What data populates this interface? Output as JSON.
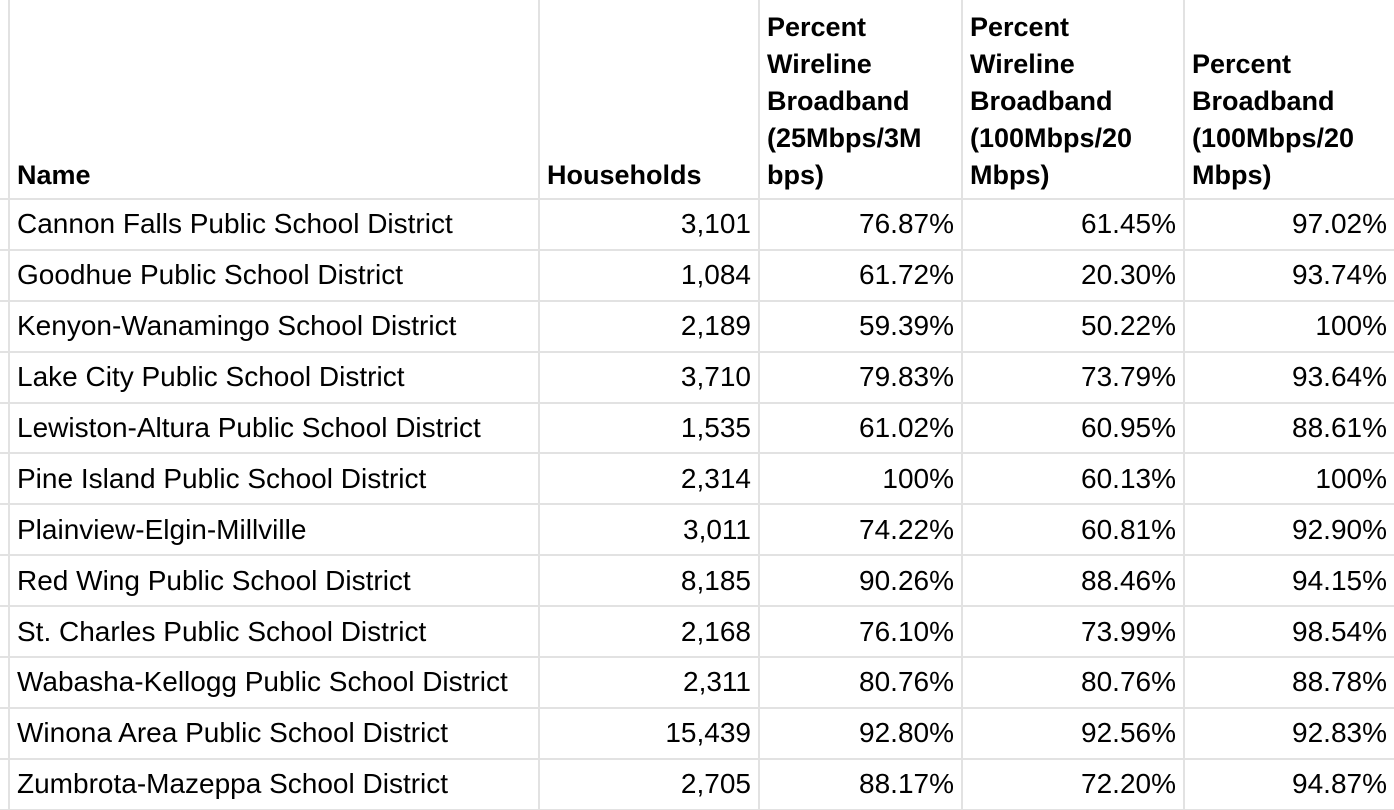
{
  "table": {
    "columns": [
      {
        "label": "Name"
      },
      {
        "label": "Households"
      },
      {
        "label": "Percent\nWireline\nBroadband\n(25Mbps/3M\nbps)"
      },
      {
        "label": "Percent\nWireline\nBroadband\n(100Mbps/20\nMbps)"
      },
      {
        "label": "Percent\nBroadband\n(100Mbps/20\nMbps)"
      }
    ],
    "rows": [
      {
        "name": "Cannon Falls Public School District",
        "households": "3,101",
        "pct_wireline_25_3": "76.87%",
        "pct_wireline_100_20": "61.45%",
        "pct_broadband_100_20": "97.02%"
      },
      {
        "name": "Goodhue Public School District",
        "households": "1,084",
        "pct_wireline_25_3": "61.72%",
        "pct_wireline_100_20": "20.30%",
        "pct_broadband_100_20": "93.74%"
      },
      {
        "name": "Kenyon-Wanamingo School District",
        "households": "2,189",
        "pct_wireline_25_3": "59.39%",
        "pct_wireline_100_20": "50.22%",
        "pct_broadband_100_20": "100%"
      },
      {
        "name": "Lake City Public School District",
        "households": "3,710",
        "pct_wireline_25_3": "79.83%",
        "pct_wireline_100_20": "73.79%",
        "pct_broadband_100_20": "93.64%"
      },
      {
        "name": "Lewiston-Altura Public School District",
        "households": "1,535",
        "pct_wireline_25_3": "61.02%",
        "pct_wireline_100_20": "60.95%",
        "pct_broadband_100_20": "88.61%"
      },
      {
        "name": "Pine Island Public School District",
        "households": "2,314",
        "pct_wireline_25_3": "100%",
        "pct_wireline_100_20": "60.13%",
        "pct_broadband_100_20": "100%"
      },
      {
        "name": "Plainview-Elgin-Millville",
        "households": "3,011",
        "pct_wireline_25_3": "74.22%",
        "pct_wireline_100_20": "60.81%",
        "pct_broadband_100_20": "92.90%"
      },
      {
        "name": "Red Wing Public School District",
        "households": "8,185",
        "pct_wireline_25_3": "90.26%",
        "pct_wireline_100_20": "88.46%",
        "pct_broadband_100_20": "94.15%"
      },
      {
        "name": "St. Charles Public School District",
        "households": "2,168",
        "pct_wireline_25_3": "76.10%",
        "pct_wireline_100_20": "73.99%",
        "pct_broadband_100_20": "98.54%"
      },
      {
        "name": "Wabasha-Kellogg Public School District",
        "households": "2,311",
        "pct_wireline_25_3": "80.76%",
        "pct_wireline_100_20": "80.76%",
        "pct_broadband_100_20": "88.78%"
      },
      {
        "name": "Winona Area Public School District",
        "households": "15,439",
        "pct_wireline_25_3": "92.80%",
        "pct_wireline_100_20": "92.56%",
        "pct_broadband_100_20": "92.83%"
      },
      {
        "name": "Zumbrota-Mazeppa School District",
        "households": "2,705",
        "pct_wireline_25_3": "88.17%",
        "pct_wireline_100_20": "72.20%",
        "pct_broadband_100_20": "94.87%"
      }
    ]
  },
  "colors": {
    "grid_line": "#e2e2e2",
    "text": "#000000",
    "background": "#ffffff"
  }
}
